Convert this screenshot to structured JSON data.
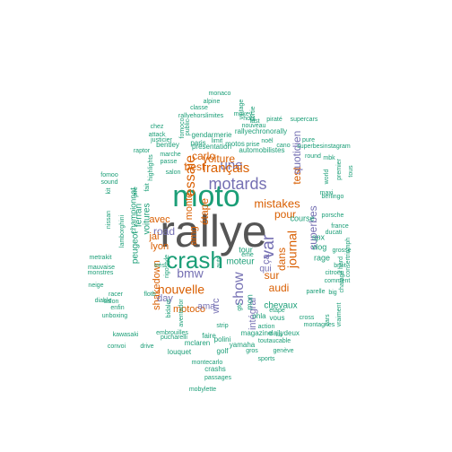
{
  "colors": {
    "teal": "#1b9e77",
    "orange": "#d95f02",
    "purple": "#7570b3",
    "grey": "#555555"
  },
  "words": [
    {
      "text": "rallye",
      "color": "grey"
    },
    {
      "text": "moto",
      "color": "teal"
    },
    {
      "text": "crash",
      "color": "teal"
    },
    {
      "text": "motards",
      "color": "purple"
    },
    {
      "text": "essaie",
      "color": "orange"
    },
    {
      "text": "une",
      "color": "purple"
    },
    {
      "text": "français",
      "color": "orange"
    },
    {
      "text": "voiture",
      "color": "orange"
    },
    {
      "text": "var",
      "color": "purple"
    },
    {
      "text": "show",
      "color": "purple"
    },
    {
      "text": "bmw",
      "color": "purple"
    },
    {
      "text": "nouvelle",
      "color": "orange"
    },
    {
      "text": "mistakes",
      "color": "orange"
    },
    {
      "text": "journal",
      "color": "orange"
    },
    {
      "text": "dans",
      "color": "orange"
    },
    {
      "text": "sur",
      "color": "orange"
    },
    {
      "text": "audi",
      "color": "orange"
    },
    {
      "text": "pour",
      "color": "orange"
    },
    {
      "text": "test",
      "color": "orange"
    },
    {
      "text": "road",
      "color": "purple"
    },
    {
      "text": "carlo",
      "color": "orange"
    },
    {
      "text": "best",
      "color": "orange"
    },
    {
      "text": "monte",
      "color": "orange"
    },
    {
      "text": "amg",
      "color": "orange"
    },
    {
      "text": "étape",
      "color": "orange"
    },
    {
      "text": "avec",
      "color": "orange"
    },
    {
      "text": "jai",
      "color": "orange"
    },
    {
      "text": "lyon",
      "color": "orange"
    },
    {
      "text": "shakedown",
      "color": "orange"
    },
    {
      "text": "day",
      "color": "purple"
    },
    {
      "text": "motoco",
      "color": "orange"
    },
    {
      "text": "quotidien",
      "color": "purple"
    },
    {
      "text": "superbes",
      "color": "purple"
    },
    {
      "text": "intégral",
      "color": "purple"
    },
    {
      "text": "ça",
      "color": "purple"
    },
    {
      "text": "qui",
      "color": "purple"
    },
    {
      "text": "wrc",
      "color": "purple"
    },
    {
      "text": "ama",
      "color": "purple"
    },
    {
      "text": "moteur",
      "color": "teal"
    },
    {
      "text": "chevaux",
      "color": "teal"
    },
    {
      "text": "course",
      "color": "teal"
    },
    {
      "text": "ferrari",
      "color": "teal"
    },
    {
      "text": "voitures",
      "color": "teal"
    },
    {
      "text": "peugeot",
      "color": "teal"
    },
    {
      "text": "championnat",
      "color": "teal"
    },
    {
      "text": "vlog",
      "color": "teal"
    },
    {
      "text": "spx",
      "color": "teal"
    },
    {
      "text": "rage",
      "color": "teal"
    },
    {
      "text": "tour",
      "color": "teal"
    },
    {
      "text": "vous",
      "color": "teal"
    },
    {
      "text": "mon",
      "color": "teal"
    },
    {
      "text": "faire",
      "color": "teal"
    },
    {
      "text": "automobilistes",
      "color": "teal"
    },
    {
      "text": "présentation",
      "color": "teal"
    },
    {
      "text": "gendarmerie",
      "color": "teal"
    },
    {
      "text": "rallyehorslimites",
      "color": "teal"
    },
    {
      "text": "rallyechronorally",
      "color": "teal"
    },
    {
      "text": "bentley",
      "color": "teal"
    },
    {
      "text": "paris",
      "color": "teal"
    },
    {
      "text": "limit",
      "color": "teal"
    },
    {
      "text": "motos",
      "color": "teal"
    },
    {
      "text": "magazine",
      "color": "teal"
    },
    {
      "text": "ohla",
      "color": "teal"
    },
    {
      "text": "dailydeux",
      "color": "teal"
    },
    {
      "text": "parelle",
      "color": "teal"
    },
    {
      "text": "big",
      "color": "teal"
    },
    {
      "text": "cross",
      "color": "teal"
    },
    {
      "text": "mclaren",
      "color": "teal"
    },
    {
      "text": "louquet",
      "color": "teal"
    },
    {
      "text": "golf",
      "color": "teal"
    },
    {
      "text": "polini",
      "color": "teal"
    },
    {
      "text": "yamaha",
      "color": "teal"
    },
    {
      "text": "embrouilles",
      "color": "teal"
    },
    {
      "text": "pucharelli",
      "color": "teal"
    },
    {
      "text": "montecarlo",
      "color": "teal"
    },
    {
      "text": "crashs",
      "color": "teal"
    },
    {
      "text": "passages",
      "color": "teal"
    },
    {
      "text": "mobylette",
      "color": "teal"
    },
    {
      "text": "toutaucable",
      "color": "teal"
    },
    {
      "text": "gros",
      "color": "teal"
    },
    {
      "text": "genève",
      "color": "teal"
    },
    {
      "text": "aventador",
      "color": "teal"
    },
    {
      "text": "bidalot",
      "color": "teal"
    },
    {
      "text": "salon",
      "color": "teal"
    },
    {
      "text": "flotb",
      "color": "teal"
    },
    {
      "text": "lamborghini",
      "color": "teal"
    },
    {
      "text": "nissan",
      "color": "teal"
    },
    {
      "text": "marche",
      "color": "teal"
    },
    {
      "text": "passe",
      "color": "teal"
    },
    {
      "text": "fomoo",
      "color": "teal"
    },
    {
      "text": "sound",
      "color": "teal"
    },
    {
      "text": "raptor",
      "color": "teal"
    },
    {
      "text": "chez",
      "color": "teal"
    },
    {
      "text": "attack",
      "color": "teal"
    },
    {
      "text": "justicier",
      "color": "teal"
    },
    {
      "text": "classe",
      "color": "teal"
    },
    {
      "text": "alpine",
      "color": "teal"
    },
    {
      "text": "monaco",
      "color": "teal"
    },
    {
      "text": "mokey",
      "color": "teal"
    },
    {
      "text": "hors",
      "color": "teal"
    },
    {
      "text": "piraté",
      "color": "teal"
    },
    {
      "text": "supercars",
      "color": "teal"
    },
    {
      "text": "superbesinstagram",
      "color": "teal"
    },
    {
      "text": "pure",
      "color": "teal"
    },
    {
      "text": "round",
      "color": "teal"
    },
    {
      "text": "mbk",
      "color": "teal"
    },
    {
      "text": "berlingo",
      "color": "teal"
    },
    {
      "text": "porsche",
      "color": "teal"
    },
    {
      "text": "france",
      "color": "teal"
    },
    {
      "text": "ducati",
      "color": "teal"
    },
    {
      "text": "grosse",
      "color": "teal"
    },
    {
      "text": "bruit",
      "color": "teal"
    },
    {
      "text": "consertriumph",
      "color": "teal"
    },
    {
      "text": "citroën",
      "color": "teal"
    },
    {
      "text": "hard",
      "color": "teal"
    },
    {
      "text": "comment",
      "color": "teal"
    },
    {
      "text": "chatage",
      "color": "teal"
    },
    {
      "text": "montagnes",
      "color": "teal"
    },
    {
      "text": "action",
      "color": "teal"
    },
    {
      "text": "étape",
      "color": "teal"
    },
    {
      "text": "lui",
      "color": "teal"
    },
    {
      "text": "cars",
      "color": "teal"
    },
    {
      "text": "vraiment",
      "color": "teal"
    },
    {
      "text": "premier",
      "color": "teal"
    },
    {
      "text": "world",
      "color": "teal"
    },
    {
      "text": "tous",
      "color": "teal"
    },
    {
      "text": "unboxing",
      "color": "teal"
    },
    {
      "text": "kawasaki",
      "color": "teal"
    },
    {
      "text": "convoi",
      "color": "teal"
    },
    {
      "text": "drive",
      "color": "teal"
    },
    {
      "text": "racer",
      "color": "teal"
    },
    {
      "text": "diable",
      "color": "teal"
    },
    {
      "text": "monstres",
      "color": "teal"
    },
    {
      "text": "neige",
      "color": "teal"
    },
    {
      "text": "metrakit",
      "color": "teal"
    },
    {
      "text": "mauvaise",
      "color": "teal"
    },
    {
      "text": "très",
      "color": "teal"
    },
    {
      "text": "auto",
      "color": "teal"
    },
    {
      "text": "strip",
      "color": "teal"
    },
    {
      "text": "rigostyle",
      "color": "teal"
    },
    {
      "text": "kit",
      "color": "teal"
    },
    {
      "text": "fomoco",
      "color": "teal"
    },
    {
      "text": "vintage",
      "color": "teal"
    },
    {
      "text": "sortie",
      "color": "teal"
    },
    {
      "text": "nouveau",
      "color": "teal"
    },
    {
      "text": "noël",
      "color": "teal"
    },
    {
      "text": "maxi",
      "color": "teal"
    },
    {
      "text": "pire",
      "color": "teal"
    },
    {
      "text": "fait",
      "color": "teal"
    },
    {
      "text": "highlights",
      "color": "teal"
    },
    {
      "text": "public",
      "color": "teal"
    },
    {
      "text": "prise",
      "color": "teal"
    },
    {
      "text": "cano",
      "color": "teal"
    },
    {
      "text": "gtc",
      "color": "teal"
    },
    {
      "text": "sports",
      "color": "teal"
    },
    {
      "text": "enfin",
      "color": "teal"
    },
    {
      "text": "fast",
      "color": "teal"
    },
    {
      "text": "salon",
      "color": "teal"
    },
    {
      "text": "éme",
      "color": "teal"
    },
    {
      "text": "part",
      "color": "teal"
    },
    {
      "text": "rouler",
      "color": "teal"
    }
  ]
}
